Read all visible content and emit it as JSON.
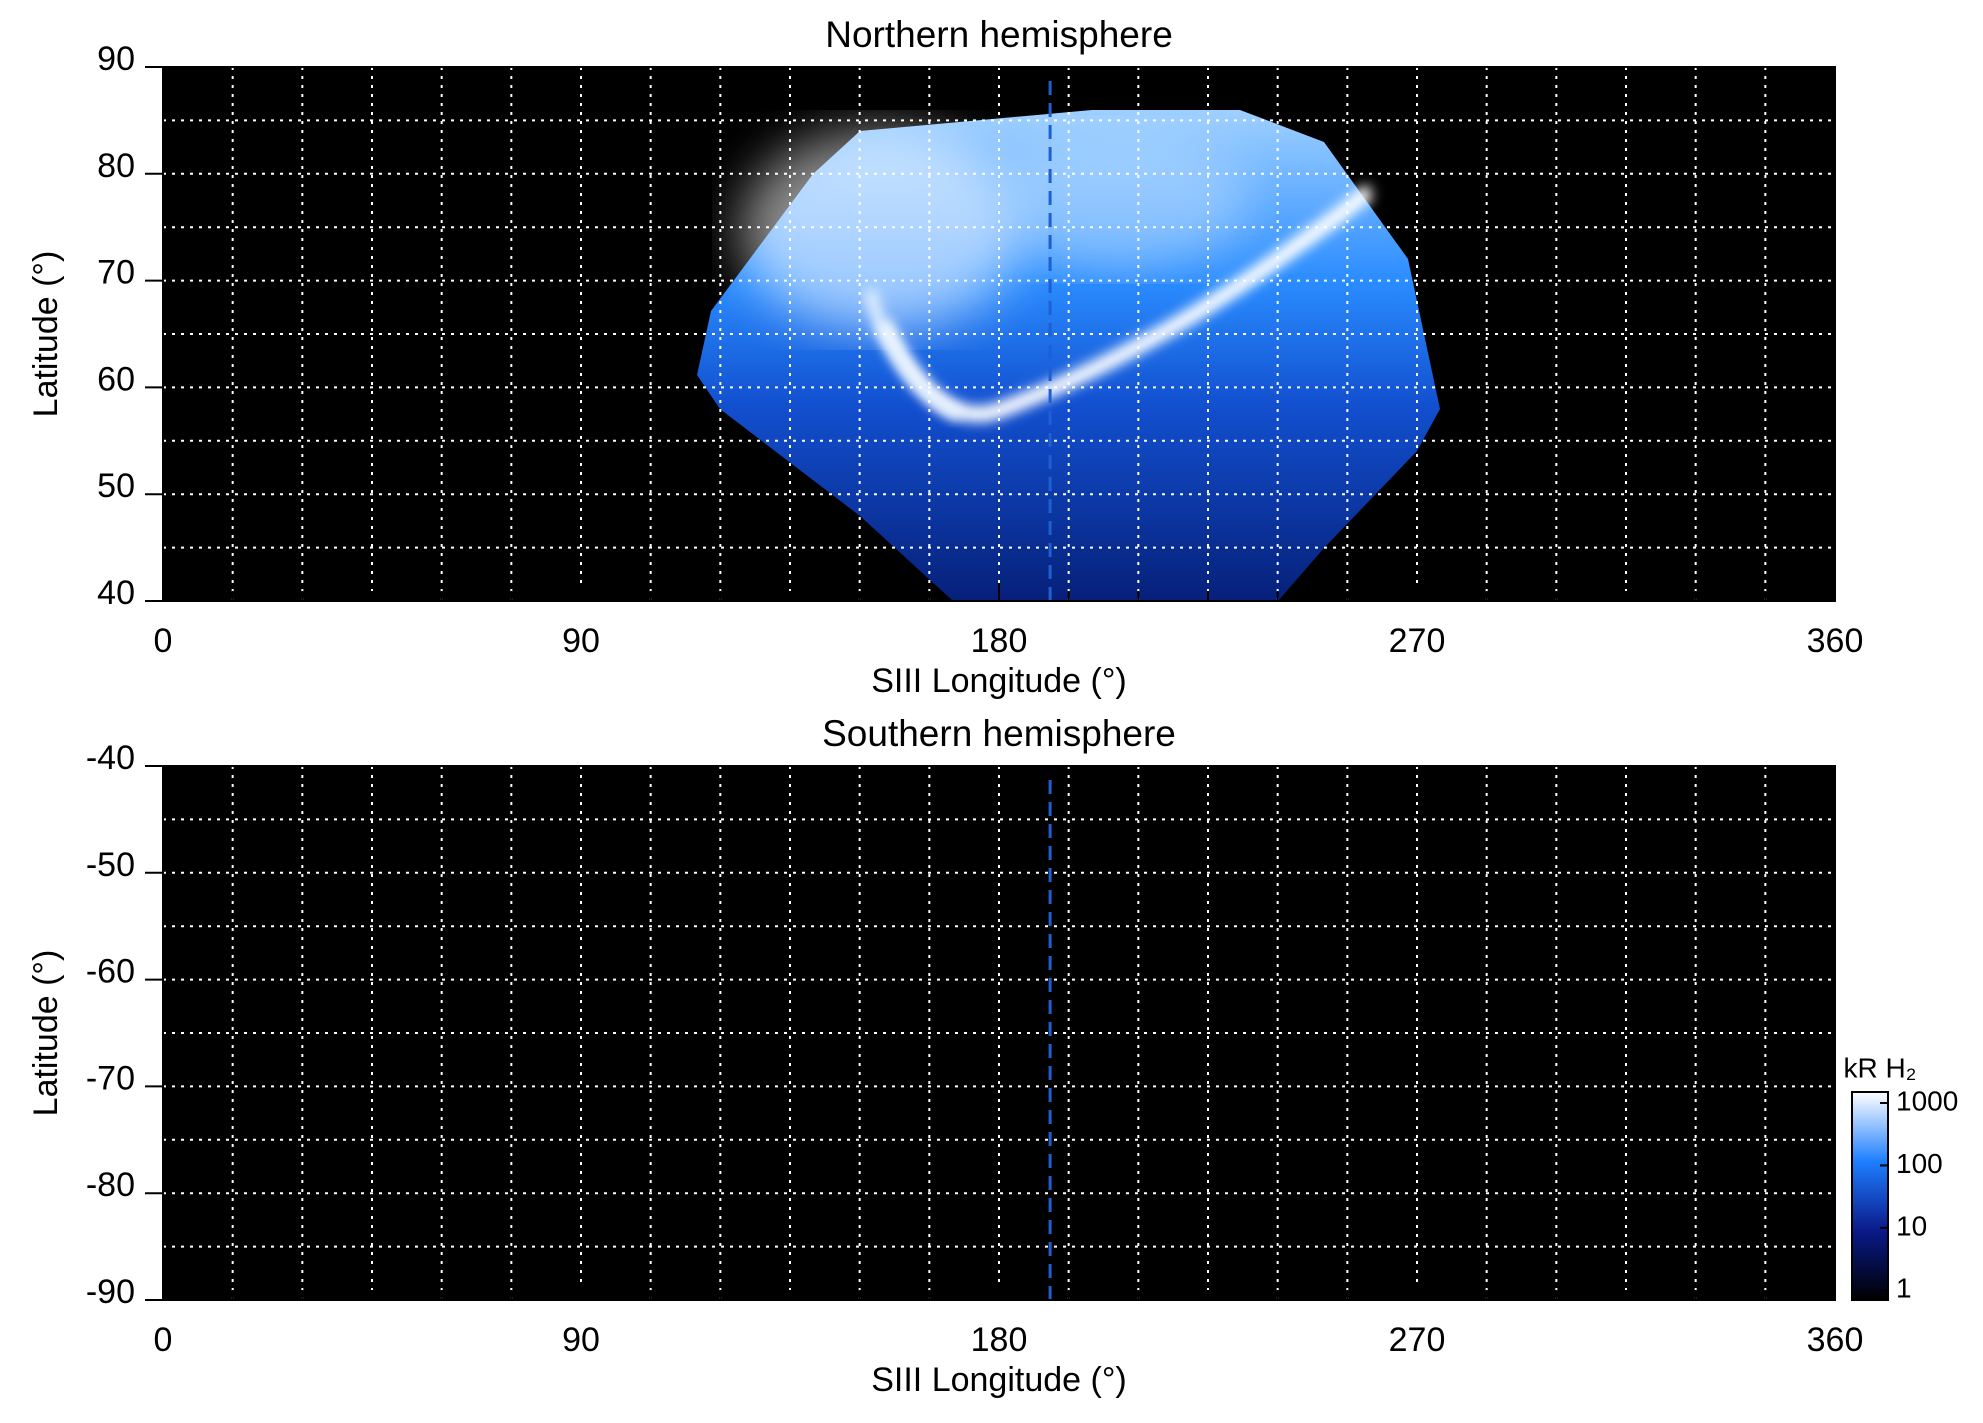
{
  "chart_data": [
    {
      "type": "heatmap",
      "title": "Northern hemisphere",
      "xlabel": "SIII Longitude (°)",
      "ylabel": "Latitude (°)",
      "xlim": [
        0,
        360
      ],
      "xticks": [
        0,
        90,
        180,
        270,
        360
      ],
      "ylim": [
        40,
        90
      ],
      "yticks": [
        40,
        50,
        60,
        70,
        80,
        90
      ],
      "xgrid": [
        15,
        30,
        45,
        60,
        75,
        90,
        105,
        120,
        135,
        150,
        165,
        180,
        195,
        210,
        225,
        240,
        255,
        270,
        285,
        300,
        315,
        330,
        345
      ],
      "ygrid": [
        45,
        50,
        55,
        60,
        65,
        70,
        75,
        80,
        85
      ],
      "vline": {
        "x": 191,
        "color": "#1f5fd0"
      }
    },
    {
      "type": "heatmap",
      "title": "Southern hemisphere",
      "xlabel": "SIII Longitude (°)",
      "ylabel": "Latitude (°)",
      "xlim": [
        0,
        360
      ],
      "xticks": [
        0,
        90,
        180,
        270,
        360
      ],
      "ylim": [
        -90,
        -40
      ],
      "yticks": [
        -40,
        -50,
        -60,
        -70,
        -80,
        -90
      ],
      "xgrid": [
        15,
        30,
        45,
        60,
        75,
        90,
        105,
        120,
        135,
        150,
        165,
        180,
        195,
        210,
        225,
        240,
        255,
        270,
        285,
        300,
        315,
        330,
        345
      ],
      "ygrid": [
        -45,
        -50,
        -55,
        -60,
        -65,
        -70,
        -75,
        -80,
        -85
      ],
      "vline": {
        "x": 191,
        "color": "#1f5fd0"
      },
      "colorbar": {
        "label": "kR H₂",
        "log": true,
        "lim": [
          0.7,
          1500
        ],
        "ticks": [
          1,
          10,
          100,
          1000
        ],
        "colormap": [
          "#000000",
          "#0a1a8a",
          "#1e7fff",
          "#ffffff"
        ]
      }
    }
  ]
}
